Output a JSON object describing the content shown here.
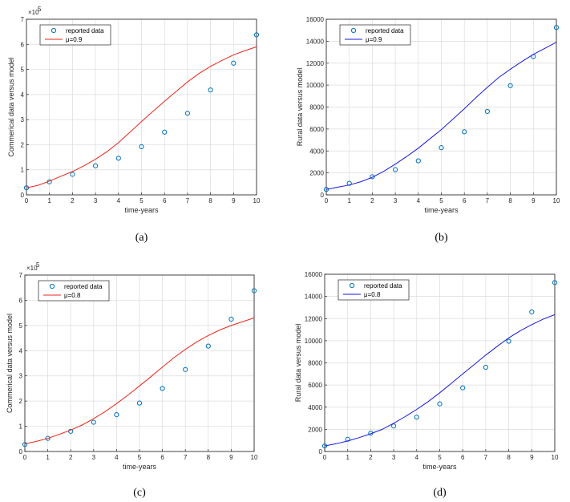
{
  "chart_data": [
    {
      "id": "a",
      "type": "line",
      "caption": "(a)",
      "xlabel": "time-years",
      "ylabel": "Commerical data versus model",
      "exponent_label": "×10",
      "exponent_power": "5",
      "xlim": [
        0,
        10
      ],
      "ylim": [
        0,
        7
      ],
      "xticks": [
        "0",
        "1",
        "2",
        "3",
        "4",
        "5",
        "6",
        "7",
        "8",
        "9",
        "10"
      ],
      "yticks": [
        "0",
        "1",
        "2",
        "3",
        "4",
        "5",
        "6",
        "7"
      ],
      "legend_position": "top-left",
      "grid": true,
      "series": [
        {
          "name": "reported data",
          "kind": "scatter",
          "color": "#0072BD",
          "x": [
            0,
            1,
            2,
            3,
            4,
            5,
            6,
            7,
            8,
            9,
            10
          ],
          "y": [
            0.28,
            0.52,
            0.82,
            1.16,
            1.46,
            1.92,
            2.5,
            3.25,
            4.18,
            5.25,
            6.38
          ]
        },
        {
          "name": "μ=0.9",
          "kind": "line",
          "color": "#e8271c",
          "x": [
            0,
            0.5,
            1,
            1.5,
            2,
            2.5,
            3,
            3.5,
            4,
            4.5,
            5,
            5.5,
            6,
            6.5,
            7,
            7.5,
            8,
            8.5,
            9,
            9.5,
            10
          ],
          "y": [
            0.28,
            0.38,
            0.55,
            0.74,
            0.93,
            1.16,
            1.42,
            1.72,
            2.08,
            2.5,
            2.92,
            3.33,
            3.73,
            4.12,
            4.5,
            4.84,
            5.12,
            5.36,
            5.58,
            5.75,
            5.9
          ]
        }
      ]
    },
    {
      "id": "b",
      "type": "line",
      "caption": "(b)",
      "xlabel": "time-years",
      "ylabel": "Rural data versus model",
      "xlim": [
        0,
        10
      ],
      "ylim": [
        0,
        16000
      ],
      "xticks": [
        "0",
        "1",
        "2",
        "3",
        "4",
        "5",
        "6",
        "7",
        "8",
        "9",
        "10"
      ],
      "yticks": [
        "0",
        "2000",
        "4000",
        "6000",
        "8000",
        "10000",
        "12000",
        "14000",
        "16000"
      ],
      "legend_position": "top-left",
      "grid": true,
      "series": [
        {
          "name": "reported data",
          "kind": "scatter",
          "color": "#0072BD",
          "x": [
            0,
            1,
            2,
            3,
            4,
            5,
            6,
            7,
            8,
            9,
            10
          ],
          "y": [
            500,
            1050,
            1650,
            2300,
            3100,
            4300,
            5750,
            7600,
            9950,
            12600,
            15250
          ]
        },
        {
          "name": "μ=0.9",
          "kind": "line",
          "color": "#1a1adb",
          "x": [
            0,
            0.5,
            1,
            1.5,
            2,
            2.5,
            3,
            3.5,
            4,
            4.5,
            5,
            5.5,
            6,
            6.5,
            7,
            7.5,
            8,
            8.5,
            9,
            9.5,
            10
          ],
          "y": [
            500,
            700,
            900,
            1200,
            1600,
            2150,
            2800,
            3500,
            4250,
            5100,
            5950,
            6900,
            7850,
            8850,
            9800,
            10700,
            11450,
            12150,
            12800,
            13350,
            13900
          ]
        }
      ]
    },
    {
      "id": "c",
      "type": "line",
      "caption": "(c)",
      "xlabel": "time-years",
      "ylabel": "Commerical data versus model",
      "exponent_label": "×10",
      "exponent_power": "5",
      "xlim": [
        0,
        10
      ],
      "ylim": [
        0,
        7
      ],
      "xticks": [
        "0",
        "1",
        "2",
        "3",
        "4",
        "5",
        "6",
        "7",
        "8",
        "9",
        "10"
      ],
      "yticks": [
        "0",
        "1",
        "2",
        "3",
        "4",
        "5",
        "6",
        "7"
      ],
      "legend_position": "top-left",
      "grid": true,
      "series": [
        {
          "name": "reported data",
          "kind": "scatter",
          "color": "#0072BD",
          "x": [
            0,
            1,
            2,
            3,
            4,
            5,
            6,
            7,
            8,
            9,
            10
          ],
          "y": [
            0.28,
            0.52,
            0.8,
            1.16,
            1.46,
            1.92,
            2.5,
            3.25,
            4.18,
            5.25,
            6.38
          ]
        },
        {
          "name": "μ=0.8",
          "kind": "line",
          "color": "#e8271c",
          "x": [
            0,
            0.5,
            1,
            1.5,
            2,
            2.5,
            3,
            3.5,
            4,
            4.5,
            5,
            5.5,
            6,
            6.5,
            7,
            7.5,
            8,
            8.5,
            9,
            9.5,
            10
          ],
          "y": [
            0.3,
            0.4,
            0.52,
            0.68,
            0.85,
            1.05,
            1.3,
            1.58,
            1.9,
            2.24,
            2.6,
            2.97,
            3.35,
            3.72,
            4.05,
            4.35,
            4.6,
            4.82,
            5.0,
            5.15,
            5.3
          ]
        }
      ]
    },
    {
      "id": "d",
      "type": "line",
      "caption": "(d)",
      "xlabel": "time-years",
      "ylabel": "Rural data versus model",
      "xlim": [
        0,
        10
      ],
      "ylim": [
        0,
        16000
      ],
      "xticks": [
        "0",
        "1",
        "2",
        "3",
        "4",
        "5",
        "6",
        "7",
        "8",
        "9",
        "10"
      ],
      "yticks": [
        "0",
        "2000",
        "4000",
        "6000",
        "8000",
        "10000",
        "12000",
        "14000",
        "16000"
      ],
      "legend_position": "top-left",
      "grid": true,
      "series": [
        {
          "name": "reported data",
          "kind": "scatter",
          "color": "#0072BD",
          "x": [
            0,
            1,
            2,
            3,
            4,
            5,
            6,
            7,
            8,
            9,
            10
          ],
          "y": [
            500,
            1100,
            1650,
            2300,
            3100,
            4300,
            5750,
            7600,
            9950,
            12600,
            15250
          ]
        },
        {
          "name": "μ=0.8",
          "kind": "line",
          "color": "#1a1adb",
          "x": [
            0,
            0.5,
            1,
            1.5,
            2,
            2.5,
            3,
            3.5,
            4,
            4.5,
            5,
            5.5,
            6,
            6.5,
            7,
            7.5,
            8,
            8.5,
            9,
            9.5,
            10
          ],
          "y": [
            500,
            700,
            950,
            1250,
            1600,
            2000,
            2550,
            3150,
            3800,
            4500,
            5300,
            6150,
            7000,
            7850,
            8700,
            9500,
            10250,
            10900,
            11450,
            11950,
            12350
          ]
        }
      ]
    }
  ]
}
